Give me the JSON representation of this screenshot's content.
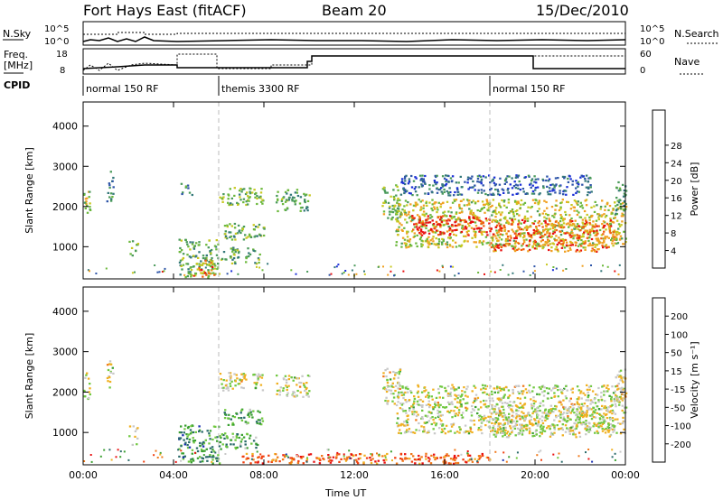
{
  "header": {
    "station": "Fort Hays East (fitACF)",
    "beam": "Beam 20",
    "date": "15/Dec/2010"
  },
  "noise_panel": {
    "left_label": "N.Sky",
    "right_label": "N.Search",
    "ticks": [
      "10^5",
      "10^0"
    ]
  },
  "freq_panel": {
    "left_label_1": "Freq.",
    "left_label_2": "[MHz]",
    "left_ticks": [
      "18",
      "8"
    ],
    "right_label": "Nave",
    "right_ticks": [
      "60",
      "0"
    ]
  },
  "cpid": {
    "label": "CPID",
    "segments": [
      {
        "start_hour": 0,
        "end_hour": 6,
        "name": "normal 150 RF"
      },
      {
        "start_hour": 6,
        "end_hour": 18,
        "name": "themis 3300 RF"
      },
      {
        "start_hour": 18,
        "end_hour": 24,
        "name": "normal 150 RF"
      }
    ]
  },
  "chart_data": [
    {
      "type": "heatmap",
      "name": "power",
      "ylabel": "Slant Range [km]",
      "xlabel": "Time UT",
      "x_ticks": [
        "00:00",
        "04:00",
        "08:00",
        "12:00",
        "16:00",
        "20:00",
        "00:00"
      ],
      "x_tick_hours": [
        0,
        4,
        8,
        12,
        16,
        20,
        24
      ],
      "y_ticks": [
        "1000",
        "2000",
        "3000",
        "4000"
      ],
      "ylim": [
        200,
        4600
      ],
      "colorbar": {
        "label": "Power [dB]",
        "ticks": [
          "4",
          "8",
          "12",
          "16",
          "20",
          "24",
          "28"
        ],
        "colors": [
          "#1a2fd6",
          "#2e55a8",
          "#34787a",
          "#4a9a5a",
          "#6cb83c",
          "#c8c820",
          "#f0a020",
          "#f06010",
          "#e81010"
        ]
      },
      "regions": [
        {
          "t0": 0.0,
          "t1": 0.3,
          "r0": 1850,
          "r1": 2500,
          "level": 0.55
        },
        {
          "t0": 1.0,
          "t1": 1.3,
          "r0": 2100,
          "r1": 2900,
          "level": 0.3
        },
        {
          "t0": 2.0,
          "t1": 2.4,
          "r0": 800,
          "r1": 1200,
          "level": 0.5
        },
        {
          "t0": 4.2,
          "t1": 6.0,
          "r0": 250,
          "r1": 1200,
          "level": 0.45
        },
        {
          "t0": 5.0,
          "t1": 5.8,
          "r0": 250,
          "r1": 700,
          "level": 0.75
        },
        {
          "t0": 4.3,
          "t1": 4.8,
          "r0": 2300,
          "r1": 2600,
          "level": 0.3
        },
        {
          "t0": 6.0,
          "t1": 8.0,
          "r0": 2050,
          "r1": 2500,
          "level": 0.5
        },
        {
          "t0": 6.2,
          "t1": 8.0,
          "r0": 1200,
          "r1": 1600,
          "level": 0.45
        },
        {
          "t0": 6.0,
          "t1": 7.8,
          "r0": 600,
          "r1": 1000,
          "level": 0.45
        },
        {
          "t0": 8.5,
          "t1": 10.0,
          "r0": 1900,
          "r1": 2450,
          "level": 0.4
        },
        {
          "t0": 13.2,
          "t1": 14.0,
          "r0": 1700,
          "r1": 2600,
          "level": 0.5
        },
        {
          "t0": 13.8,
          "t1": 24.0,
          "r0": 1000,
          "r1": 2200,
          "level": 0.6
        },
        {
          "t0": 14.5,
          "t1": 18.0,
          "r0": 1300,
          "r1": 1800,
          "level": 0.95
        },
        {
          "t0": 18.0,
          "t1": 23.5,
          "r0": 900,
          "r1": 1700,
          "level": 0.8
        },
        {
          "t0": 14.0,
          "t1": 22.5,
          "r0": 2300,
          "r1": 2800,
          "level": 0.2
        },
        {
          "t0": 23.5,
          "t1": 24.0,
          "r0": 1800,
          "r1": 2700,
          "level": 0.4
        }
      ]
    },
    {
      "type": "heatmap",
      "name": "velocity",
      "ylabel": "Slant Range [km]",
      "xlabel": "Time UT",
      "x_ticks": [
        "00:00",
        "04:00",
        "08:00",
        "12:00",
        "16:00",
        "20:00",
        "00:00"
      ],
      "x_tick_hours": [
        0,
        4,
        8,
        12,
        16,
        20,
        24
      ],
      "y_ticks": [
        "1000",
        "2000",
        "3000",
        "4000"
      ],
      "ylim": [
        200,
        4600
      ],
      "colorbar": {
        "label": "Velocity [m s⁻¹]",
        "ticks": [
          "200",
          "100",
          "50",
          "15",
          "-15",
          "-50",
          "-100",
          "-200"
        ],
        "colors": [
          "#1a2fb0",
          "#2a6a6a",
          "#3aa030",
          "#70c840",
          "#c8c8c8",
          "#f0b020",
          "#f07818",
          "#f04010",
          "#e81010"
        ]
      },
      "regions": [
        {
          "t0": 0.0,
          "t1": 0.3,
          "r0": 1850,
          "r1": 2500,
          "level": 0.5
        },
        {
          "t0": 1.0,
          "t1": 1.3,
          "r0": 2100,
          "r1": 2900,
          "level": 0.5
        },
        {
          "t0": 2.0,
          "t1": 2.4,
          "r0": 700,
          "r1": 1200,
          "level": 0.5
        },
        {
          "t0": 4.2,
          "t1": 6.0,
          "r0": 250,
          "r1": 1200,
          "level": 0.25
        },
        {
          "t0": 6.0,
          "t1": 8.0,
          "r0": 2050,
          "r1": 2500,
          "level": 0.5
        },
        {
          "t0": 6.2,
          "t1": 8.0,
          "r0": 1200,
          "r1": 1600,
          "level": 0.3
        },
        {
          "t0": 6.0,
          "t1": 7.8,
          "r0": 600,
          "r1": 1000,
          "level": 0.3
        },
        {
          "t0": 8.5,
          "t1": 10.0,
          "r0": 1900,
          "r1": 2450,
          "level": 0.5
        },
        {
          "t0": 13.2,
          "t1": 14.0,
          "r0": 1700,
          "r1": 2600,
          "level": 0.5
        },
        {
          "t0": 13.8,
          "t1": 24.0,
          "r0": 1000,
          "r1": 2200,
          "level": 0.5
        },
        {
          "t0": 18.0,
          "t1": 23.5,
          "r0": 900,
          "r1": 1700,
          "level": 0.5
        },
        {
          "t0": 7.0,
          "t1": 18.0,
          "r0": 250,
          "r1": 500,
          "level": 0.78
        },
        {
          "t0": 23.5,
          "t1": 24.0,
          "r0": 1800,
          "r1": 2700,
          "level": 0.55
        }
      ]
    }
  ]
}
